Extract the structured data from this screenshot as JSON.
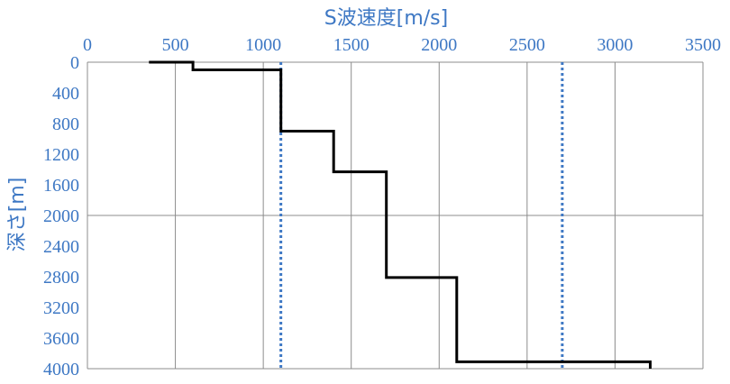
{
  "chart_data": {
    "type": "line",
    "title": "",
    "xlabel": "S波速度[m/s]",
    "ylabel": "深さ[m]",
    "x_axis_position": "top",
    "y_axis_inverted": true,
    "xlim": [
      0,
      3500
    ],
    "ylim": [
      0,
      4000
    ],
    "x_ticks": [
      "0",
      "500",
      "1000",
      "1500",
      "2000",
      "2500",
      "3000",
      "3500"
    ],
    "y_ticks": [
      "0",
      "400",
      "800",
      "1200",
      "1600",
      "2000",
      "2400",
      "2800",
      "3200",
      "3600",
      "4000"
    ],
    "grid": true,
    "legend": "none",
    "colors": {
      "axis_text": "#3e78c4",
      "profile": "#000000",
      "reference_line": "#3e78c4",
      "grid": "#8c8c8c"
    },
    "series": [
      {
        "style": "solid-step",
        "points": [
          {
            "x": 350,
            "y": 0
          },
          {
            "x": 600,
            "y": 0
          },
          {
            "x": 600,
            "y": 100
          },
          {
            "x": 1100,
            "y": 100
          },
          {
            "x": 1100,
            "y": 900
          },
          {
            "x": 1400,
            "y": 900
          },
          {
            "x": 1400,
            "y": 1430
          },
          {
            "x": 1700,
            "y": 1430
          },
          {
            "x": 1700,
            "y": 2810
          },
          {
            "x": 2100,
            "y": 2810
          },
          {
            "x": 2100,
            "y": 3910
          },
          {
            "x": 3200,
            "y": 3910
          },
          {
            "x": 3200,
            "y": 4000
          }
        ]
      }
    ],
    "reference_lines": [
      {
        "orientation": "vertical",
        "style": "dotted",
        "x": 1100
      },
      {
        "orientation": "vertical",
        "style": "dotted",
        "x": 2700
      }
    ]
  }
}
